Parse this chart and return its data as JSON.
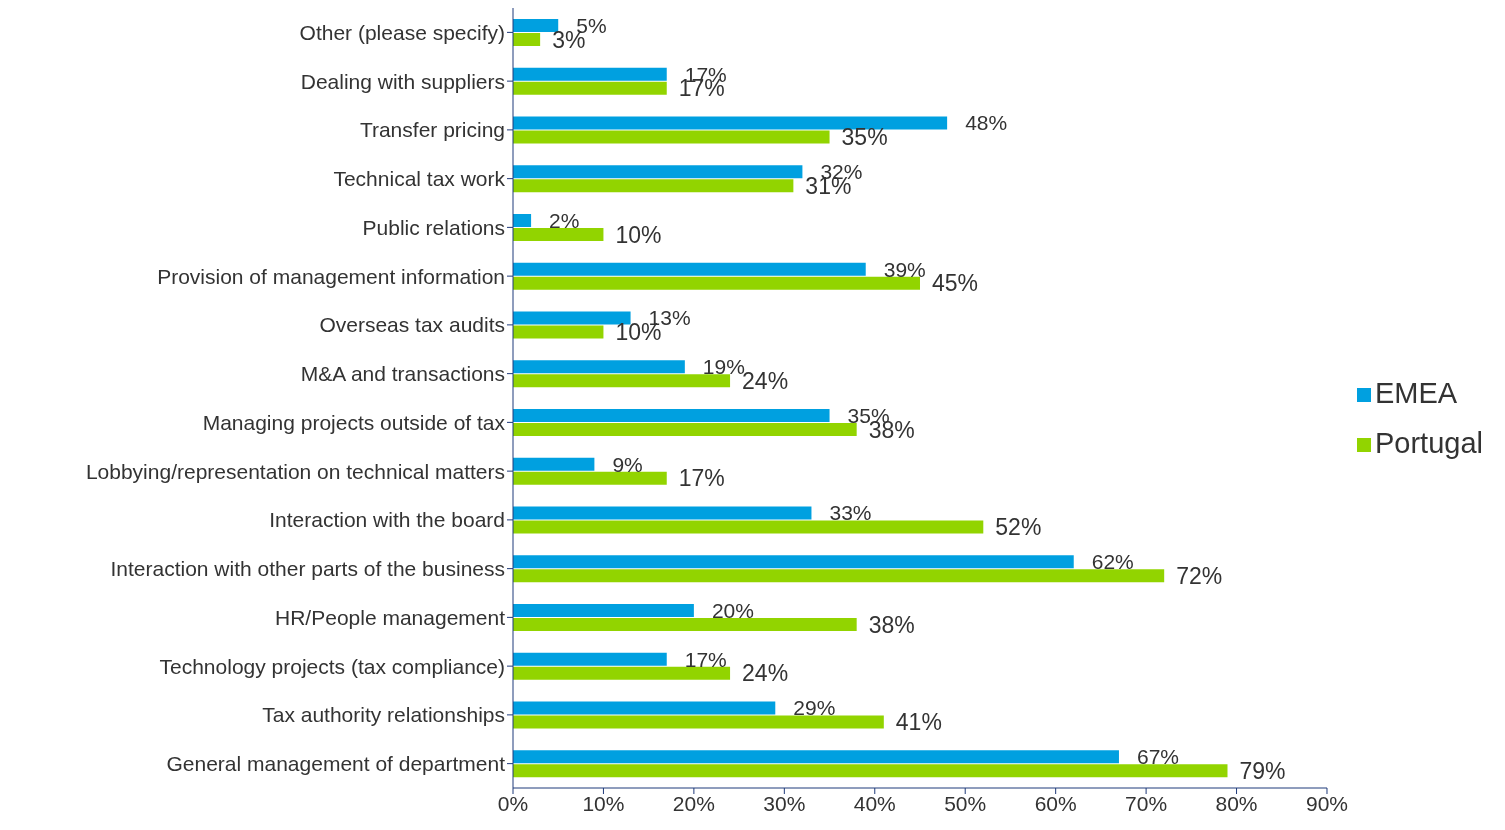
{
  "chart_data": {
    "type": "bar",
    "orientation": "horizontal",
    "categories": [
      "Other (please specify)",
      "Dealing with suppliers",
      "Transfer pricing",
      "Technical tax work",
      "Public relations",
      "Provision of management information",
      "Overseas tax audits",
      "M&A and transactions",
      "Managing projects outside of tax",
      "Lobbying/representation on technical matters",
      "Interaction with the board",
      "Interaction with other parts of the business",
      "HR/People management",
      "Technology projects (tax compliance)",
      "Tax authority relationships",
      "General management of department"
    ],
    "series": [
      {
        "name": "EMEA",
        "color": "#00a0e0",
        "values": [
          5,
          17,
          48,
          32,
          2,
          39,
          13,
          19,
          35,
          9,
          33,
          62,
          20,
          17,
          29,
          67
        ],
        "value_labels": [
          "5%",
          "17%",
          "48%",
          "32%",
          "2%",
          "39%",
          "13%",
          "19%",
          "35%",
          "9%",
          "33%",
          "62%",
          "20%",
          "17%",
          "29%",
          "67%"
        ]
      },
      {
        "name": "Portugal",
        "color": "#92d400",
        "values": [
          3,
          17,
          35,
          31,
          10,
          45,
          10,
          24,
          38,
          17,
          52,
          72,
          38,
          24,
          41,
          79
        ],
        "value_labels": [
          "3%",
          "17%",
          "35%",
          "31%",
          "10%",
          "45%",
          "10%",
          "24%",
          "38%",
          "17%",
          "52%",
          "72%",
          "38%",
          "24%",
          "41%",
          "79%"
        ]
      }
    ],
    "xlim": [
      0,
      90
    ],
    "xticks": [
      {
        "value": 0,
        "label": "0%"
      },
      {
        "value": 10,
        "label": "10%"
      },
      {
        "value": 20,
        "label": "20%"
      },
      {
        "value": 30,
        "label": "30%"
      },
      {
        "value": 40,
        "label": "40%"
      },
      {
        "value": 50,
        "label": "50%"
      },
      {
        "value": 60,
        "label": "60%"
      },
      {
        "value": 70,
        "label": "70%"
      },
      {
        "value": 80,
        "label": "80%"
      },
      {
        "value": 90,
        "label": "90%"
      }
    ],
    "grid": false,
    "legend": "right"
  }
}
